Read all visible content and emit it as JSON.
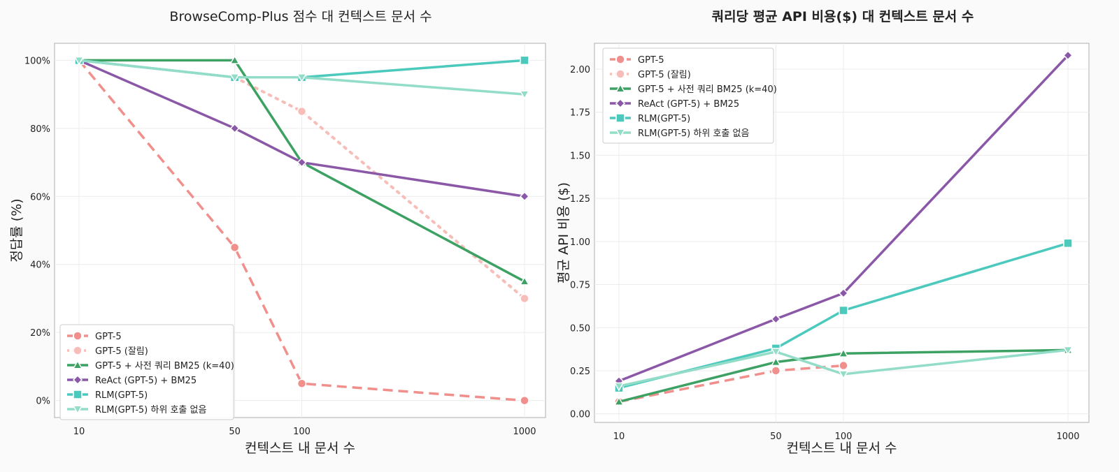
{
  "chart_data": [
    {
      "type": "line",
      "title": "BrowseComp-Plus 점수 대 컨텍스트 문서 수",
      "xlabel": "컨텍스트 내 문서 수",
      "ylabel": "정답률 (%)",
      "x_scale": "log",
      "x": [
        10,
        50,
        100,
        1000
      ],
      "xticks": [
        "10",
        "50",
        "100",
        "1000"
      ],
      "ylim": [
        -5,
        105
      ],
      "yticks": [
        0,
        20,
        40,
        60,
        80,
        100
      ],
      "ytick_labels": [
        "0%",
        "20%",
        "40%",
        "60%",
        "80%",
        "100%"
      ],
      "grid": true,
      "legend": "bottom-left",
      "series": [
        {
          "name": "GPT-5",
          "values": [
            100,
            45,
            5,
            0
          ],
          "color": "#F08F8C",
          "style": "dashed",
          "marker": "circle"
        },
        {
          "name": "GPT-5 (잘림)",
          "values": [
            null,
            95,
            85,
            30
          ],
          "color": "#F7BDB8",
          "style": "dotted",
          "marker": "circle"
        },
        {
          "name": "GPT-5 + 사전 쿼리 BM25 (k=40)",
          "values": [
            100,
            100,
            70,
            35
          ],
          "color": "#3DA163",
          "style": "solid",
          "marker": "triangle-up"
        },
        {
          "name": "ReAct (GPT-5) + BM25",
          "values": [
            100,
            80,
            70,
            60
          ],
          "color": "#8B58A8",
          "style": "solid",
          "marker": "diamond"
        },
        {
          "name": "RLM(GPT-5)",
          "values": [
            100,
            95,
            95,
            100
          ],
          "color": "#4CC9BD",
          "style": "solid",
          "marker": "square"
        },
        {
          "name": "RLM(GPT-5) 하위 호출 없음",
          "values": [
            100,
            95,
            95,
            90
          ],
          "color": "#93DDC8",
          "style": "solid",
          "marker": "triangle-down"
        }
      ]
    },
    {
      "type": "line",
      "title": "쿼리당 평균 API 비용($) 대 컨텍스트 문서 수",
      "xlabel": "컨텍스트 내 문서 수",
      "ylabel": "평균 API 비용 ($)",
      "x_scale": "log",
      "x": [
        10,
        50,
        100,
        1000
      ],
      "xticks": [
        "10",
        "50",
        "100",
        "1000"
      ],
      "ylim": [
        -0.05,
        2.15
      ],
      "yticks": [
        0,
        0.25,
        0.5,
        0.75,
        1.0,
        1.25,
        1.5,
        1.75,
        2.0
      ],
      "ytick_labels": [
        "0.00",
        "0.25",
        "0.50",
        "0.75",
        "1.00",
        "1.25",
        "1.50",
        "1.75",
        "2.00"
      ],
      "grid": true,
      "legend": "top-left",
      "series": [
        {
          "name": "GPT-5",
          "values": [
            0.07,
            0.25,
            0.28,
            null
          ],
          "color": "#F08F8C",
          "style": "dashed",
          "marker": "circle"
        },
        {
          "name": "GPT-5 (잘림)",
          "values": [
            null,
            null,
            null,
            null
          ],
          "color": "#F7BDB8",
          "style": "dotted",
          "marker": "circle"
        },
        {
          "name": "GPT-5 + 사전 쿼리 BM25 (k=40)",
          "values": [
            0.07,
            0.3,
            0.35,
            0.37
          ],
          "color": "#3DA163",
          "style": "solid",
          "marker": "triangle-up"
        },
        {
          "name": "ReAct (GPT-5) + BM25",
          "values": [
            0.19,
            0.55,
            0.7,
            2.08
          ],
          "color": "#8B58A8",
          "style": "solid",
          "marker": "diamond"
        },
        {
          "name": "RLM(GPT-5)",
          "values": [
            0.15,
            0.38,
            0.6,
            0.99
          ],
          "color": "#4CC9BD",
          "style": "solid",
          "marker": "square"
        },
        {
          "name": "RLM(GPT-5) 하위 호출 없음",
          "values": [
            0.16,
            0.36,
            0.23,
            0.37
          ],
          "color": "#93DDC8",
          "style": "solid",
          "marker": "triangle-down"
        }
      ]
    }
  ]
}
